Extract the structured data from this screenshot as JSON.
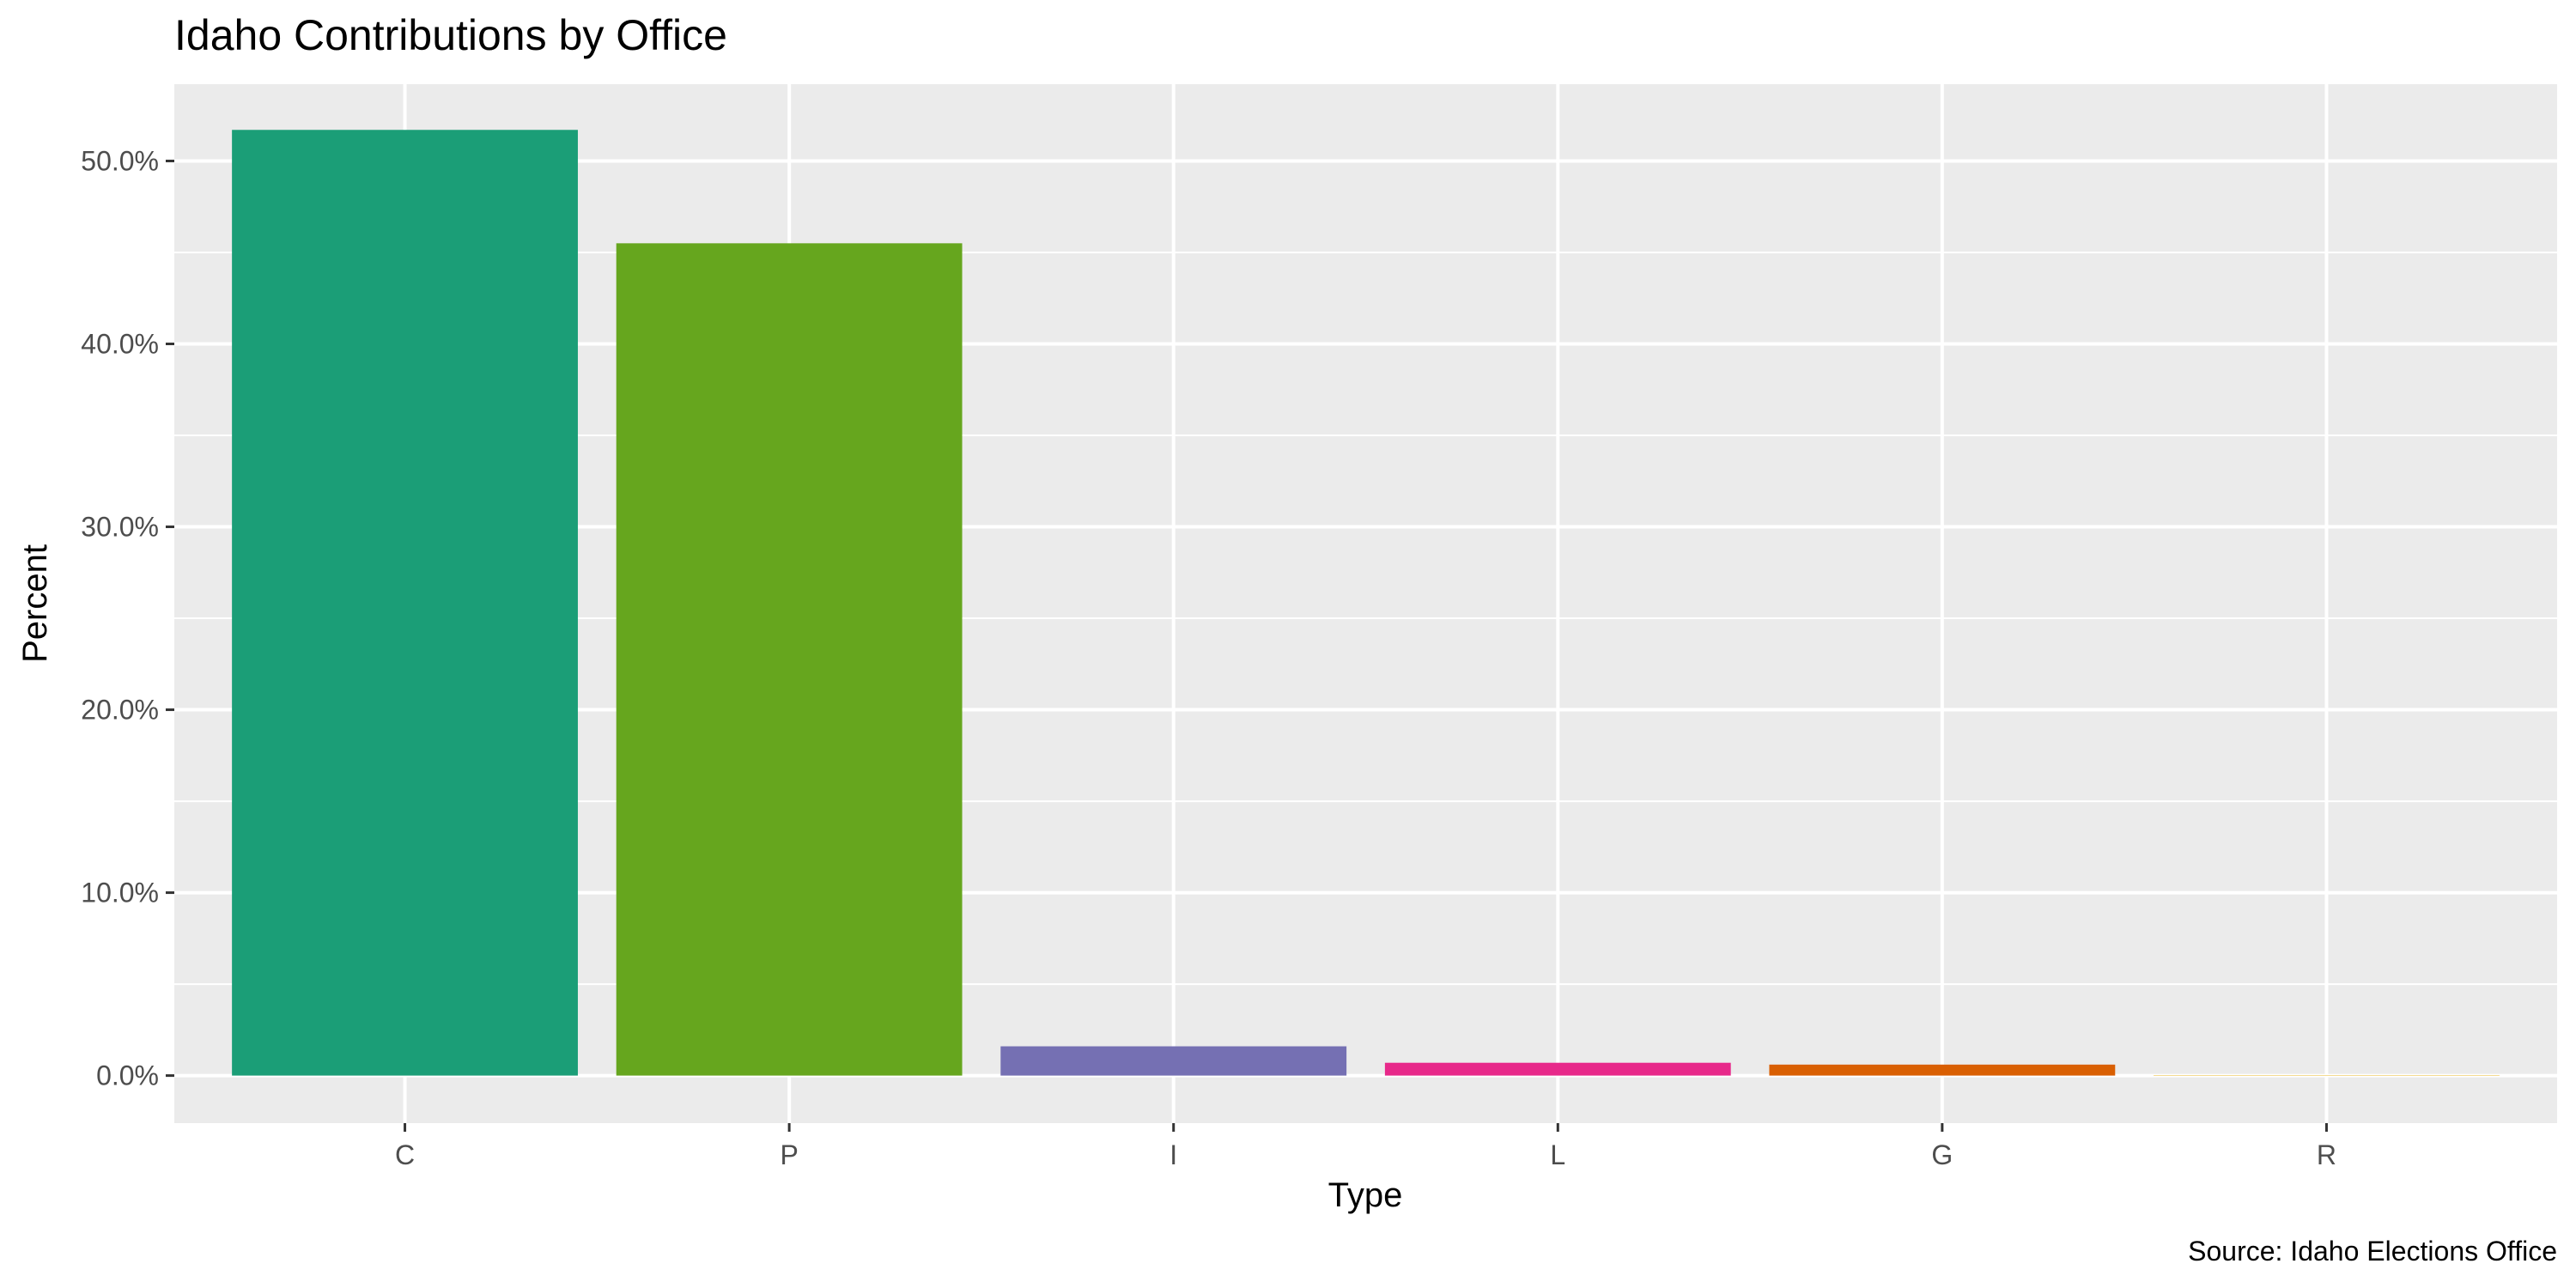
{
  "chart_data": {
    "type": "bar",
    "title": "Idaho Contributions by Office",
    "xlabel": "Type",
    "ylabel": "Percent",
    "caption": "Source: Idaho Elections Office",
    "categories": [
      "C",
      "P",
      "I",
      "L",
      "G",
      "R"
    ],
    "values": [
      0.517,
      0.455,
      0.016,
      0.007,
      0.006,
      0.0002
    ],
    "colors": [
      "#1B9E77",
      "#66A61E",
      "#7570B3",
      "#E7298A",
      "#D95F02",
      "#E6AB02"
    ],
    "ylim": [
      -0.026,
      0.542
    ],
    "yticks": [
      0.0,
      0.1,
      0.2,
      0.3,
      0.4,
      0.5
    ],
    "ytick_labels": [
      "0.0%",
      "10.0%",
      "20.0%",
      "30.0%",
      "40.0%",
      "50.0%"
    ],
    "grid": true,
    "legend": "none",
    "panel_color": "#EBEBEB"
  }
}
